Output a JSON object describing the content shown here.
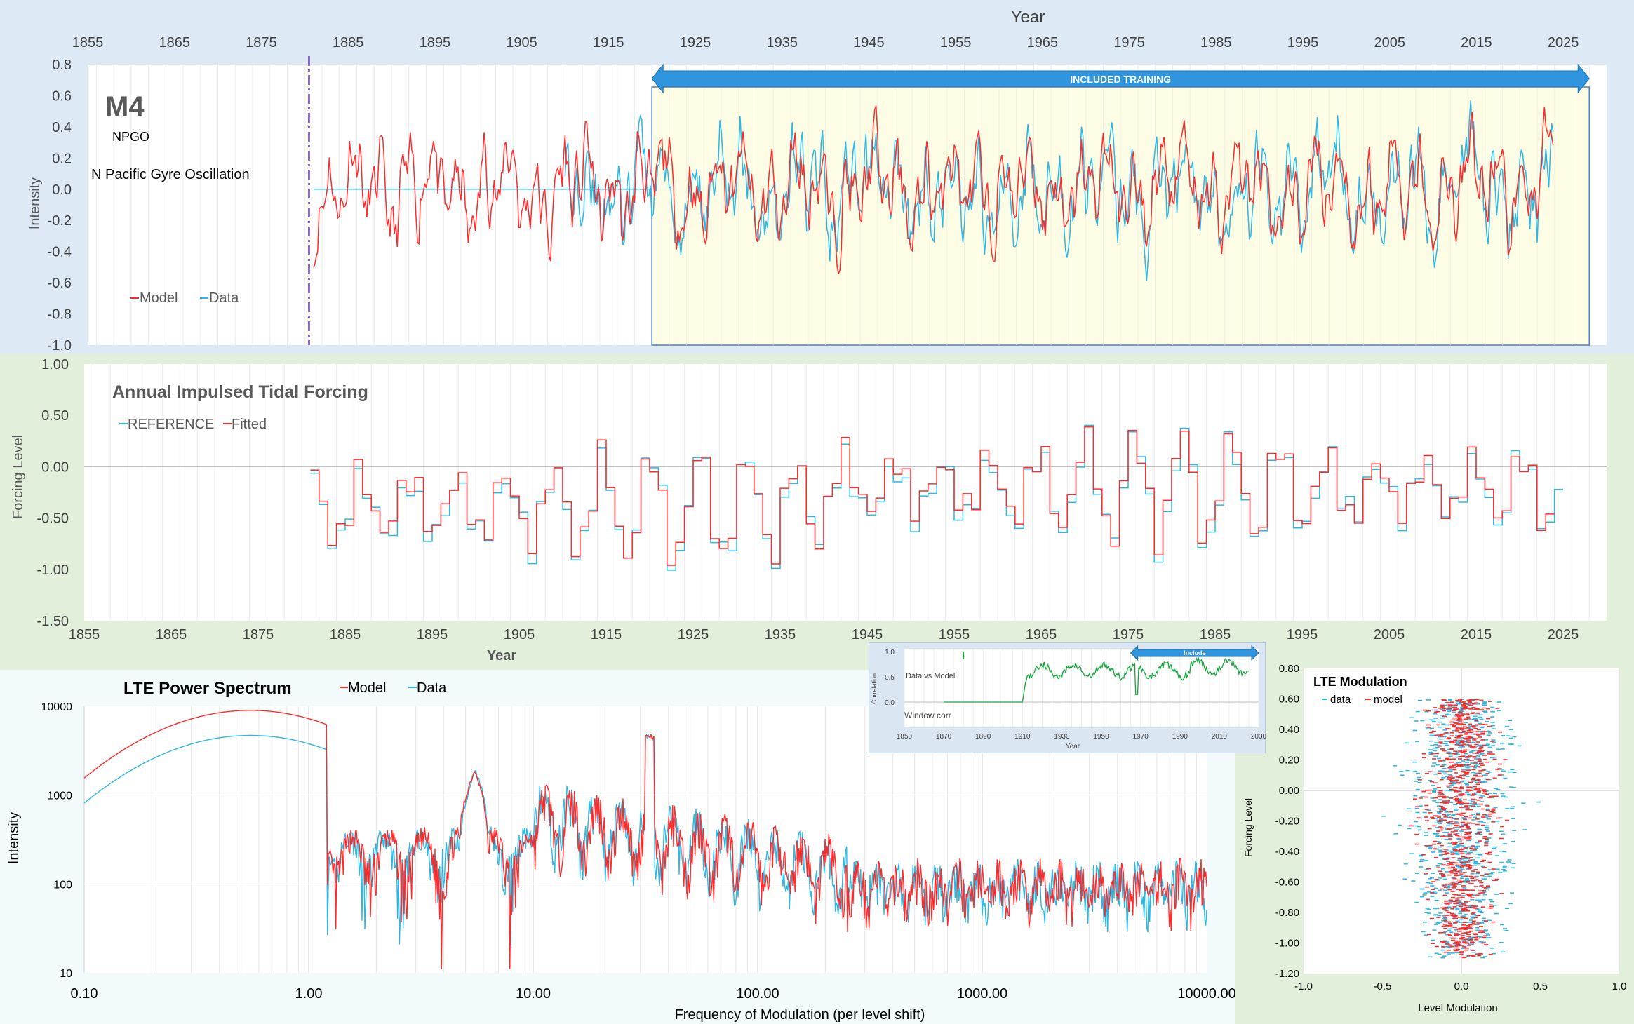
{
  "top_chart": {
    "x_title": "Year",
    "y_title": "Intensity",
    "title": "M4",
    "subtitle": "NPGO",
    "description": "N Pacific Gyre Oscillation",
    "training_label": "INCLUDED TRAINING",
    "legend": [
      "Model",
      "Data"
    ]
  },
  "mid_chart": {
    "title": "Annual Impulsed Tidal Forcing",
    "y_title": "Forcing Level",
    "x_title": "Year",
    "legend": [
      "REFERENCE",
      "Fitted"
    ]
  },
  "spectrum_chart": {
    "title": "LTE Power Spectrum",
    "y_title": "Intensity",
    "x_title": "Frequency of Modulation (per level shift)",
    "legend": [
      "Model",
      "Data"
    ]
  },
  "correlation_chart": {
    "label": "Data vs Model",
    "window_label": "Window corr",
    "include_label": "Include",
    "y_title": "Correlation",
    "x_title": "Year"
  },
  "lte_chart": {
    "title": "LTE Modulation",
    "y_title": "Forcing Level",
    "x_title": "Level Modulation",
    "legend": [
      "data",
      "model"
    ]
  },
  "colors": {
    "model": "#ff2a2a",
    "data": "#2db7e3",
    "corr": "#14a83b",
    "arrow": "#2f95de"
  },
  "chart_data": [
    {
      "type": "line",
      "title": "M4",
      "xlabel": "Year",
      "ylabel": "Intensity",
      "xlim": [
        1855,
        2030
      ],
      "ylim": [
        -1.0,
        0.8
      ],
      "x_ticks": [
        1855,
        1865,
        1875,
        1885,
        1895,
        1905,
        1915,
        1925,
        1935,
        1945,
        1955,
        1965,
        1975,
        1985,
        1995,
        2005,
        2015,
        2025
      ],
      "y_ticks": [
        0.8,
        0.6,
        0.4,
        0.2,
        0.0,
        -0.2,
        -0.4,
        -0.6,
        -0.8,
        -1.0
      ],
      "y_tick_labels": [
        "0.8",
        "0.6",
        "0.4",
        "0.2",
        "0.0",
        "-0.2",
        "-0.4",
        "-0.6",
        "-0.8",
        "-1.0"
      ],
      "training_range": [
        1920,
        2028
      ],
      "marker_year": 1880.5,
      "series": [
        {
          "name": "Model",
          "color": "#ff2a2a",
          "x_start": 1881,
          "x_end": 2024,
          "mean": 0.0,
          "amp": 0.28,
          "seed": 11
        },
        {
          "name": "Data",
          "color": "#2db7e3",
          "x_start": 1910,
          "x_end": 2024,
          "mean": 0.0,
          "amp": 0.34,
          "seed": 29
        }
      ]
    },
    {
      "type": "line",
      "title": "Annual Impulsed Tidal Forcing",
      "xlabel": "Year",
      "ylabel": "Forcing Level",
      "xlim": [
        1855,
        2030
      ],
      "ylim": [
        -1.5,
        1.0
      ],
      "x_ticks": [
        1855,
        1865,
        1875,
        1885,
        1895,
        1905,
        1915,
        1925,
        1935,
        1945,
        1955,
        1965,
        1975,
        1985,
        1995,
        2005,
        2015,
        2025
      ],
      "y_ticks": [
        1.0,
        0.5,
        0.0,
        -0.5,
        -1.0,
        -1.5
      ],
      "y_tick_labels": [
        "1.00",
        "0.50",
        "0.00",
        "-0.50",
        "-1.00",
        "-1.50"
      ],
      "series": [
        {
          "name": "REFERENCE",
          "color": "#2db7e3",
          "x_start": 1881,
          "x_end": 2024
        },
        {
          "name": "Fitted",
          "color": "#ff2a2a",
          "x_start": 1881,
          "x_end": 2023
        }
      ]
    },
    {
      "type": "line",
      "title": "LTE Power Spectrum",
      "xlabel": "Frequency of Modulation (per level shift)",
      "ylabel": "Intensity",
      "x_scale": "log",
      "y_scale": "log",
      "xlim": [
        0.1,
        10000
      ],
      "ylim": [
        10,
        10000
      ],
      "x_tick_labels": [
        "0.10",
        "1.00",
        "10.00",
        "100.00",
        "1000.00",
        "10000.00"
      ],
      "y_tick_labels": [
        "10000",
        "1000",
        "100",
        "10"
      ],
      "series": [
        {
          "name": "Model",
          "color": "#ff2a2a",
          "peak": 9000
        },
        {
          "name": "Data",
          "color": "#2db7e3",
          "peak": 4700
        }
      ]
    },
    {
      "type": "line",
      "title": "Window corr",
      "xlabel": "Year",
      "ylabel": "Correlation",
      "xlim": [
        1850,
        2030
      ],
      "ylim": [
        0.0,
        1.0
      ],
      "x_tick_labels": [
        "1850",
        "1870",
        "1890",
        "1910",
        "1930",
        "1950",
        "1970",
        "1990",
        "2010",
        "2030"
      ],
      "y_tick_labels": [
        "1.0",
        "0.5",
        "0.0"
      ],
      "include_range": [
        1965,
        2030
      ],
      "series": [
        {
          "name": "Data vs Model",
          "color": "#14a83b",
          "x_start": 1910,
          "x_end": 2025
        }
      ]
    },
    {
      "type": "scatter",
      "title": "LTE Modulation",
      "xlabel": "Level Modulation",
      "ylabel": "Forcing Level",
      "xlim": [
        -1.0,
        1.0
      ],
      "ylim": [
        -1.2,
        0.8
      ],
      "x_tick_labels": [
        "-1.0",
        "-0.5",
        "0.0",
        "0.5",
        "1.0"
      ],
      "y_tick_labels": [
        "0.80",
        "0.60",
        "0.40",
        "0.20",
        "0.00",
        "-0.20",
        "-0.40",
        "-0.60",
        "-0.80",
        "-1.00",
        "-1.20"
      ],
      "series": [
        {
          "name": "data",
          "color": "#2db7e3",
          "spread": 0.32
        },
        {
          "name": "model",
          "color": "#ff2a2a",
          "spread": 0.22
        }
      ]
    }
  ]
}
